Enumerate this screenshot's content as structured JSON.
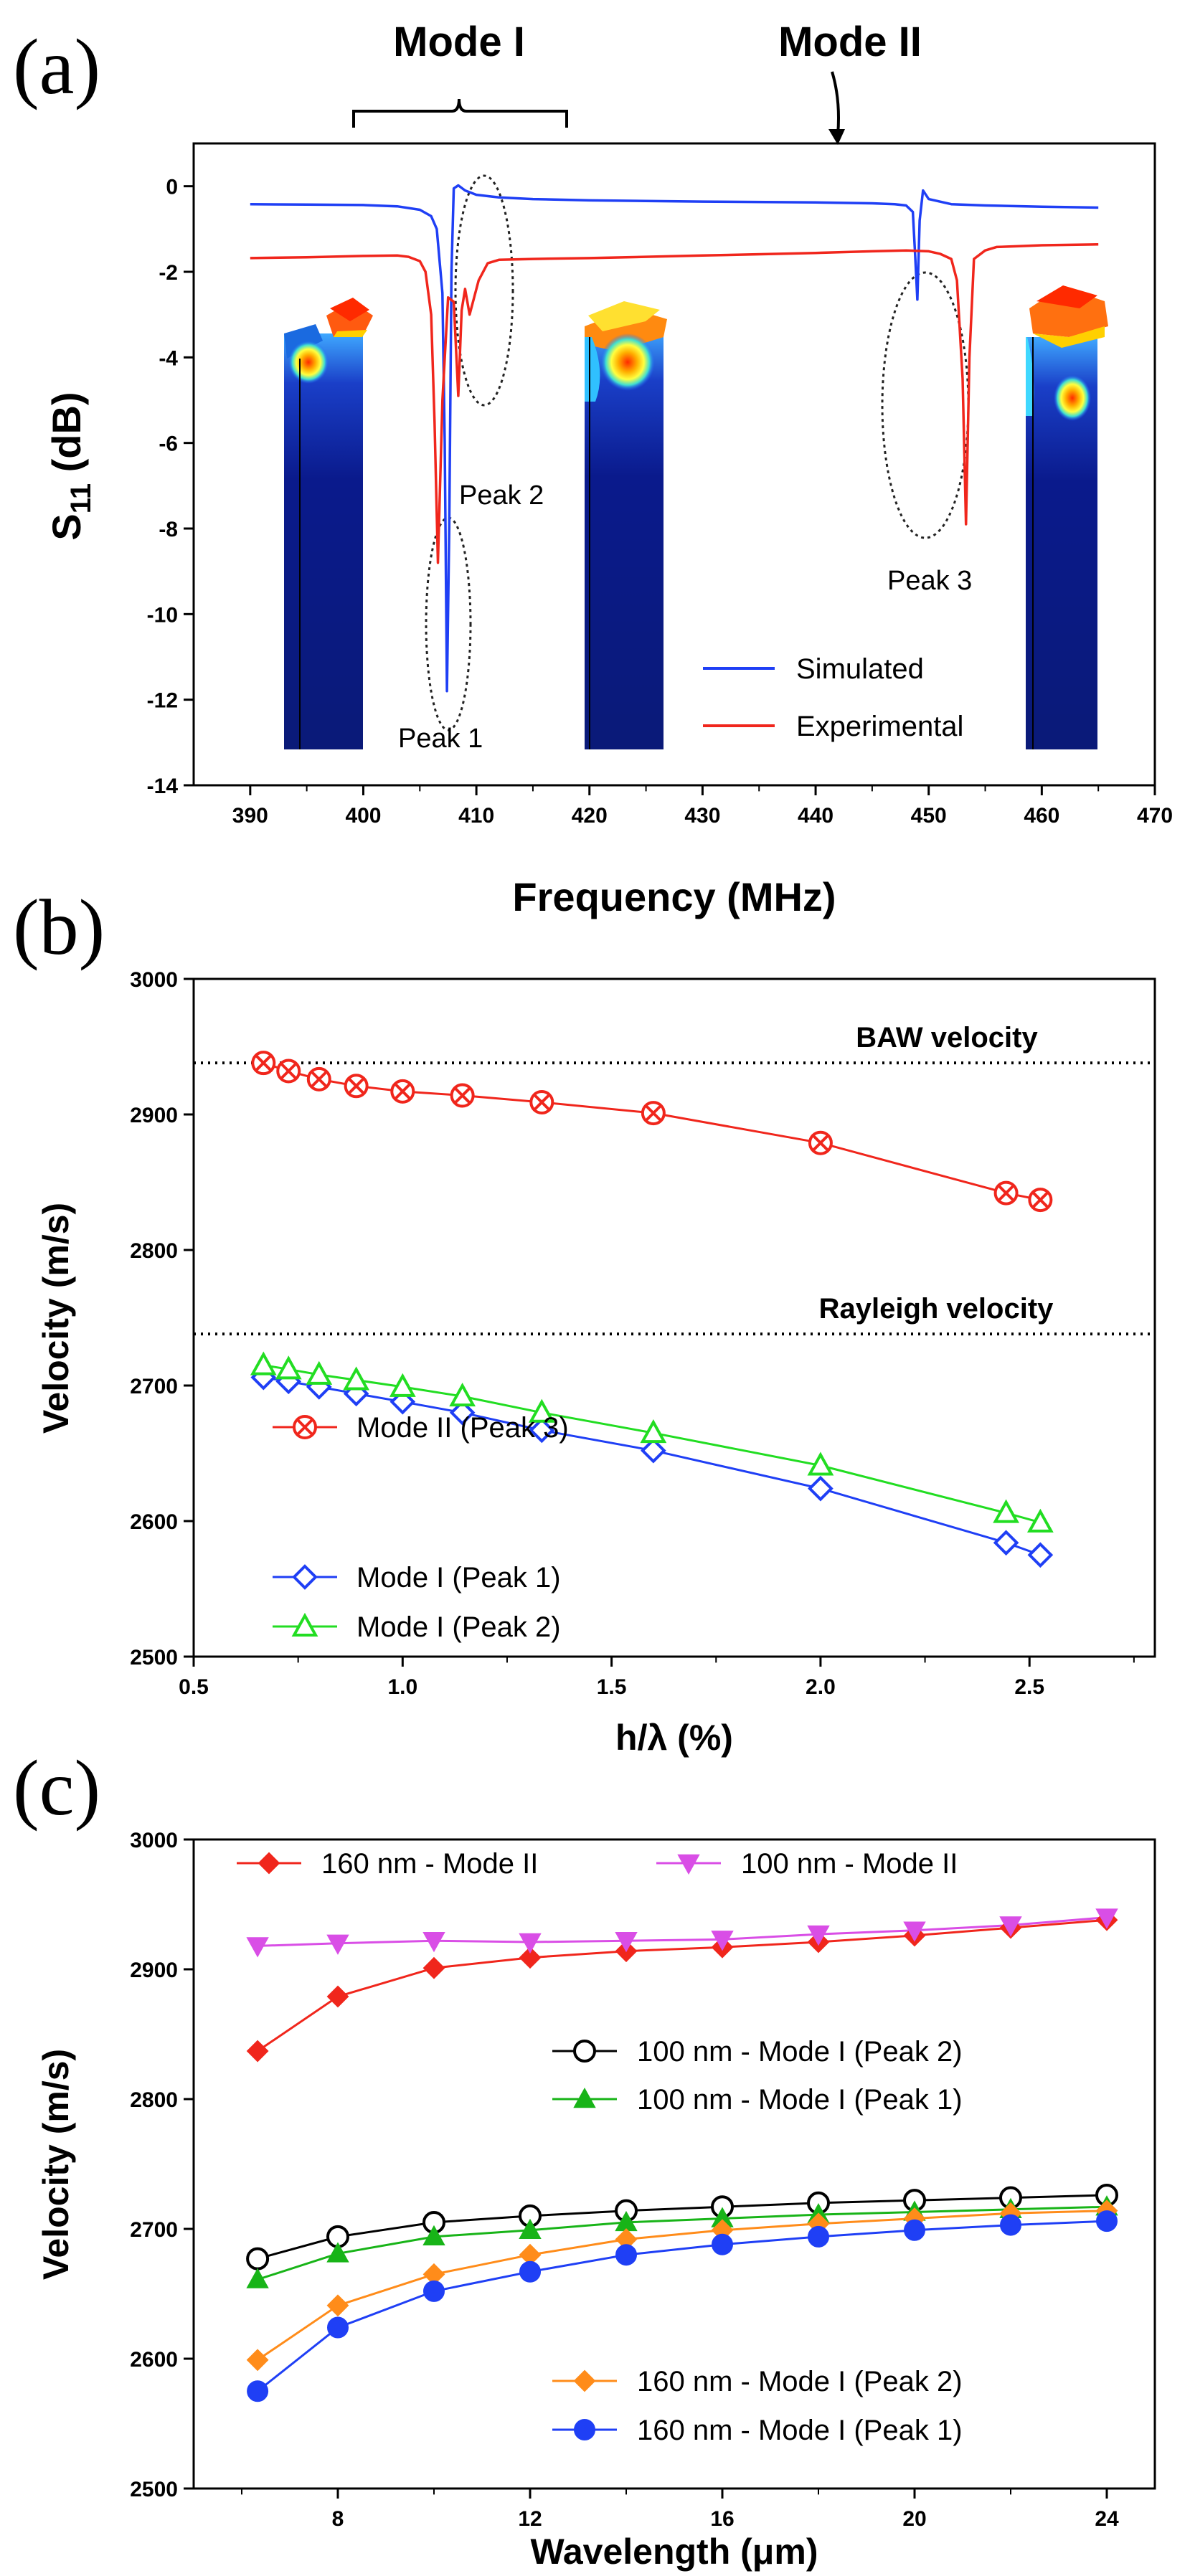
{
  "chart_data": [
    {
      "type": "line",
      "panel": "(a)",
      "title": "",
      "xlabel": "Frequency (MHz)",
      "ylabel_main": "S",
      "ylabel_sub": "11",
      "ylabel_unit": " (dB)",
      "xlim": [
        385,
        470
      ],
      "ylim": [
        -14,
        1
      ],
      "xticks": [
        "390",
        "400",
        "410",
        "420",
        "430",
        "440",
        "450",
        "460",
        "470"
      ],
      "xtick_values": [
        390,
        400,
        410,
        420,
        430,
        440,
        450,
        460,
        470
      ],
      "yticks": [
        "0",
        "-2",
        "-4",
        "-6",
        "-8",
        "-10",
        "-12",
        "-14"
      ],
      "ytick_values": [
        0,
        -2,
        -4,
        -6,
        -8,
        -10,
        -12,
        -14
      ],
      "series": [
        {
          "name": "Simulated",
          "color": "#1f3ff5",
          "x": [
            390,
            395,
            400,
            403,
            405,
            406,
            406.5,
            407,
            407.2,
            407.4,
            407.6,
            407.8,
            408,
            408.4,
            409,
            410,
            412,
            415,
            420,
            430,
            440,
            445,
            447,
            448,
            448.6,
            448.8,
            449.0,
            449.2,
            449.5,
            450,
            452,
            455,
            460,
            465
          ],
          "y": [
            -0.42,
            -0.43,
            -0.44,
            -0.47,
            -0.55,
            -0.7,
            -1.0,
            -2.5,
            -6.0,
            -11.8,
            -8.0,
            -2.0,
            -0.05,
            0.02,
            -0.1,
            -0.2,
            -0.26,
            -0.3,
            -0.33,
            -0.36,
            -0.38,
            -0.4,
            -0.42,
            -0.45,
            -0.6,
            -1.6,
            -2.65,
            -0.8,
            -0.1,
            -0.3,
            -0.42,
            -0.45,
            -0.48,
            -0.5
          ]
        },
        {
          "name": "Experimental",
          "color": "#f0261c",
          "x": [
            390,
            395,
            400,
            403,
            404,
            405,
            405.5,
            406,
            406.3,
            406.6,
            407,
            407.5,
            408,
            408.4,
            408.7,
            409,
            409.4,
            409.8,
            410.2,
            410.6,
            411,
            412,
            415,
            420,
            430,
            440,
            445,
            448,
            450,
            451,
            452,
            452.5,
            453,
            453.3,
            453.6,
            454,
            455,
            456,
            458,
            460,
            465
          ],
          "y": [
            -1.68,
            -1.66,
            -1.63,
            -1.62,
            -1.65,
            -1.75,
            -2.0,
            -3.0,
            -5.5,
            -8.8,
            -5.0,
            -2.6,
            -2.7,
            -4.9,
            -2.9,
            -2.4,
            -3.0,
            -2.6,
            -2.2,
            -2.0,
            -1.8,
            -1.72,
            -1.7,
            -1.68,
            -1.62,
            -1.56,
            -1.52,
            -1.5,
            -1.52,
            -1.58,
            -1.7,
            -2.2,
            -4.5,
            -7.9,
            -4.0,
            -1.7,
            -1.5,
            -1.42,
            -1.4,
            -1.38,
            -1.36
          ]
        }
      ],
      "annotations": {
        "mode1": "Mode I",
        "mode2": "Mode II",
        "peak1": "Peak 1",
        "peak2": "Peak 2",
        "peak3": "Peak 3"
      },
      "legend": [
        "Simulated",
        "Experimental"
      ]
    },
    {
      "type": "line",
      "panel": "(b)",
      "title": "",
      "xlabel": "h/λ (%)",
      "ylabel": "Velocity (m/s)",
      "xlim": [
        0.5,
        2.8
      ],
      "ylim": [
        2500,
        3000
      ],
      "xticks": [
        "0.5",
        "1.0",
        "1.5",
        "2.0",
        "2.5"
      ],
      "xtick_values": [
        0.5,
        1.0,
        1.5,
        2.0,
        2.5
      ],
      "yticks": [
        "2500",
        "2600",
        "2700",
        "2800",
        "2900",
        "3000"
      ],
      "ytick_values": [
        2500,
        2600,
        2700,
        2800,
        2900,
        3000
      ],
      "reference_lines": [
        {
          "label": "BAW velocity",
          "y": 2938
        },
        {
          "label": "Rayleigh velocity",
          "y": 2738
        }
      ],
      "x": [
        0.667,
        0.727,
        0.8,
        0.889,
        1.0,
        1.143,
        1.333,
        1.6,
        2.0,
        2.444,
        2.526
      ],
      "series": [
        {
          "name": "Mode II (Peak 3)",
          "color": "#f0261c",
          "marker": "circle-x",
          "values": [
            2938,
            2932,
            2926,
            2921,
            2917,
            2914,
            2909,
            2901,
            2879,
            2842,
            2837
          ]
        },
        {
          "name": "Mode I (Peak 1)",
          "color": "#1f3ff5",
          "marker": "diamond",
          "values": [
            2706,
            2703,
            2699,
            2694,
            2688,
            2680,
            2667,
            2652,
            2624,
            2584,
            2575
          ]
        },
        {
          "name": "Mode I (Peak 2)",
          "color": "#22dd22",
          "marker": "triangle",
          "values": [
            2715,
            2712,
            2708,
            2704,
            2699,
            2692,
            2680,
            2665,
            2641,
            2606,
            2599
          ]
        }
      ],
      "legend": [
        "Mode II (Peak 3)",
        "Mode I (Peak 1)",
        "Mode I (Peak 2)"
      ]
    },
    {
      "type": "line",
      "panel": "(c)",
      "title": "",
      "xlabel": "Wavelength (μm)",
      "ylabel": "Velocity (m/s)",
      "xlim": [
        5,
        25
      ],
      "ylim": [
        2500,
        3000
      ],
      "xticks": [
        "8",
        "12",
        "16",
        "20",
        "24"
      ],
      "xtick_values": [
        8,
        12,
        16,
        20,
        24
      ],
      "yticks": [
        "2500",
        "2600",
        "2700",
        "2800",
        "2900",
        "3000"
      ],
      "ytick_values": [
        2500,
        2600,
        2700,
        2800,
        2900,
        3000
      ],
      "x": [
        6.33,
        8,
        10,
        12,
        14,
        16,
        18,
        20,
        22,
        24
      ],
      "series": [
        {
          "name": "160 nm - Mode II",
          "color": "#f0261c",
          "marker": "diamond-filled",
          "values": [
            2837,
            2879,
            2901,
            2909,
            2914,
            2917,
            2921,
            2926,
            2932,
            2938
          ]
        },
        {
          "name": "100 nm - Mode II",
          "color": "#d94ee6",
          "marker": "triangle-down",
          "values": [
            2918,
            2920,
            2922,
            2921,
            2922,
            2923,
            2927,
            2930,
            2934,
            2940
          ]
        },
        {
          "name": "100 nm - Mode I (Peak 2)",
          "color": "#000000",
          "marker": "circle-open",
          "values": [
            2677,
            2694,
            2705,
            2710,
            2714,
            2717,
            2720,
            2722,
            2724,
            2726
          ]
        },
        {
          "name": "100 nm - Mode I (Peak 1)",
          "color": "#18b418",
          "marker": "triangle-filled",
          "values": [
            2661,
            2681,
            2694,
            2699,
            2705,
            2708,
            2711,
            2713,
            2715,
            2717
          ]
        },
        {
          "name": "160 nm - Mode I (Peak 2)",
          "color": "#ff8c1a",
          "marker": "diamond-filled",
          "values": [
            2599,
            2641,
            2665,
            2680,
            2692,
            2699,
            2704,
            2708,
            2712,
            2714
          ]
        },
        {
          "name": "160 nm - Mode I (Peak 1)",
          "color": "#1f3ff5",
          "marker": "circle-filled",
          "values": [
            2575,
            2624,
            2652,
            2667,
            2680,
            2688,
            2694,
            2699,
            2703,
            2706
          ]
        }
      ],
      "legend": [
        "160 nm - Mode II",
        "100 nm - Mode II",
        "100 nm - Mode I (Peak 2)",
        "100 nm - Mode I (Peak 1)",
        "160 nm - Mode I (Peak 2)",
        "160 nm - Mode I (Peak 1)"
      ]
    }
  ]
}
